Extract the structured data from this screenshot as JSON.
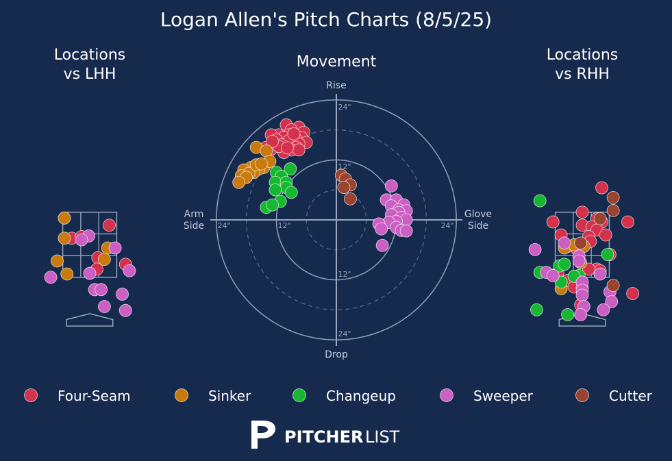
{
  "title": "Logan Allen's Pitch Charts (8/5/25)",
  "brand": {
    "strong": "PITCHER",
    "light": "LIST"
  },
  "colors": {
    "background": "#162a4e",
    "grid": "#9aa6bb",
    "text": "#ffffff",
    "muted": "#c4ccd9"
  },
  "legend": [
    {
      "name": "Four-Seam",
      "color": "#d4314c"
    },
    {
      "name": "Sinker",
      "color": "#c97a0c"
    },
    {
      "name": "Changeup",
      "color": "#17b831"
    },
    {
      "name": "Sweeper",
      "color": "#cc5fc3"
    },
    {
      "name": "Cutter",
      "color": "#9a4330"
    }
  ],
  "chart_data": [
    {
      "type": "scatter",
      "title": "Locations vs LHH",
      "title_lines": [
        "Locations",
        "vs LHH"
      ],
      "x_unit": "ft from plate center (catcher view)",
      "y_unit": "ft above ground",
      "xlim": [
        -1.8,
        1.8
      ],
      "ylim": [
        -0.3,
        4.5
      ],
      "zone": {
        "x": [
          -0.83,
          0.83
        ],
        "y": [
          1.5,
          3.5
        ]
      },
      "series": [
        {
          "name": "Four-Seam",
          "points": [
            [
              0.6,
              3.1
            ],
            [
              -0.55,
              2.7
            ],
            [
              -0.25,
              2.75
            ],
            [
              0.25,
              2.1
            ],
            [
              0.22,
              1.75
            ],
            [
              1.1,
              1.9
            ]
          ]
        },
        {
          "name": "Sinker",
          "points": [
            [
              -0.78,
              3.32
            ],
            [
              -0.78,
              2.7
            ],
            [
              0.55,
              2.4
            ],
            [
              0.45,
              2.05
            ],
            [
              -1.0,
              2.0
            ],
            [
              -0.7,
              1.6
            ]
          ]
        },
        {
          "name": "Sweeper",
          "points": [
            [
              -0.03,
              2.77
            ],
            [
              -0.25,
              2.65
            ],
            [
              0.78,
              2.4
            ],
            [
              1.22,
              1.7
            ],
            [
              0.0,
              1.62
            ],
            [
              -1.2,
              1.5
            ],
            [
              0.15,
              1.12
            ],
            [
              0.35,
              1.12
            ],
            [
              1.0,
              0.98
            ],
            [
              0.45,
              0.6
            ],
            [
              1.1,
              0.48
            ]
          ]
        }
      ]
    },
    {
      "type": "scatter",
      "title": "Movement",
      "axis_labels": {
        "top": "Rise",
        "bottom": "Drop",
        "left": [
          "Arm",
          "Side"
        ],
        "right": [
          "Glove",
          "Side"
        ]
      },
      "unit": "inches",
      "rings": [
        6,
        12,
        18,
        24
      ],
      "ring_labels": [
        "12\"",
        "24\"",
        "12\"",
        "24\"",
        "12\"",
        "24\"",
        "12\"",
        "24\""
      ],
      "series": [
        {
          "name": "Four-Seam",
          "points": [
            [
              -10,
              19
            ],
            [
              -7.5,
              18.5
            ],
            [
              -9,
              18
            ],
            [
              -6.5,
              17.5
            ],
            [
              -9.5,
              17
            ],
            [
              -11.5,
              17
            ],
            [
              -13,
              17
            ],
            [
              -7,
              16.5
            ],
            [
              -10.5,
              16.5
            ],
            [
              -12,
              16
            ],
            [
              -8,
              16
            ],
            [
              -9.5,
              15.8
            ],
            [
              -6,
              15.5
            ],
            [
              -7.5,
              15.2
            ],
            [
              -11,
              15
            ],
            [
              -12.5,
              15
            ],
            [
              -14,
              14.5
            ],
            [
              -8,
              14.5
            ],
            [
              -9,
              14
            ],
            [
              -10.5,
              13.5
            ],
            [
              -7.5,
              14
            ],
            [
              -13,
              14.2
            ],
            [
              -11.5,
              14.7
            ],
            [
              -9.8,
              14.4
            ],
            [
              -8.5,
              17.2
            ],
            [
              -12.8,
              15.7
            ]
          ]
        },
        {
          "name": "Sinker",
          "points": [
            [
              -16,
              14.5
            ],
            [
              -14,
              13.8
            ],
            [
              -14.5,
              10.5
            ],
            [
              -15.5,
              10.2
            ],
            [
              -17,
              10.5
            ],
            [
              -18.5,
              10
            ],
            [
              -16.5,
              9.5
            ],
            [
              -17.5,
              9.3
            ],
            [
              -19,
              8.8
            ],
            [
              -18,
              8.5
            ],
            [
              -19.5,
              7.5
            ],
            [
              -16,
              11
            ],
            [
              -13.3,
              11.7
            ],
            [
              -15,
              11.2
            ]
          ]
        },
        {
          "name": "Changeup",
          "points": [
            [
              -12,
              9.5
            ],
            [
              -9.2,
              10.2
            ],
            [
              -11,
              8.7
            ],
            [
              -12.2,
              7.5
            ],
            [
              -10,
              7.5
            ],
            [
              -10,
              6.5
            ],
            [
              -12.2,
              6
            ],
            [
              -9,
              5.5
            ],
            [
              -11.2,
              3.7
            ],
            [
              -14,
              2.5
            ],
            [
              -12.8,
              3
            ]
          ]
        },
        {
          "name": "Sweeper",
          "points": [
            [
              11,
              6.8
            ],
            [
              10,
              4
            ],
            [
              12,
              4
            ],
            [
              13.5,
              3
            ],
            [
              11,
              2.8
            ],
            [
              12.5,
              2
            ],
            [
              14,
              1.8
            ],
            [
              12.5,
              1.5
            ],
            [
              11,
              1
            ],
            [
              13,
              0.5
            ],
            [
              14,
              0
            ],
            [
              12,
              -0.3
            ],
            [
              10.5,
              -0.5
            ],
            [
              8.5,
              -0.8
            ],
            [
              9,
              -1.8
            ],
            [
              12,
              -1.5
            ],
            [
              13,
              -2.1
            ],
            [
              14,
              -2.2
            ],
            [
              9.2,
              -5.1
            ]
          ]
        },
        {
          "name": "Cutter",
          "points": [
            [
              1,
              8.9
            ],
            [
              1.8,
              8.2
            ],
            [
              2.8,
              7
            ],
            [
              1.5,
              6.5
            ],
            [
              2.8,
              4.2
            ]
          ]
        }
      ]
    },
    {
      "type": "scatter",
      "title": "Locations vs RHH",
      "title_lines": [
        "Locations",
        "vs RHH"
      ],
      "x_unit": "ft from plate center (catcher view)",
      "y_unit": "ft above ground",
      "xlim": [
        -1.8,
        1.8
      ],
      "ylim": [
        -0.3,
        4.5
      ],
      "zone": {
        "x": [
          -0.83,
          0.83
        ],
        "y": [
          1.5,
          3.5
        ]
      },
      "series": [
        {
          "name": "Four-Seam",
          "points": [
            [
              0.6,
              4.25
            ],
            [
              0.0,
              3.5
            ],
            [
              0.45,
              3.3
            ],
            [
              0.6,
              3.2
            ],
            [
              -0.9,
              3.2
            ],
            [
              0.0,
              3.1
            ],
            [
              0.3,
              3.05
            ],
            [
              0.45,
              2.95
            ],
            [
              -0.65,
              2.8
            ],
            [
              0.2,
              2.75
            ],
            [
              0.72,
              2.8
            ],
            [
              0.25,
              2.6
            ],
            [
              -0.45,
              2.45
            ],
            [
              -0.15,
              2.35
            ],
            [
              0.85,
              2.2
            ],
            [
              0.45,
              1.75
            ],
            [
              0.55,
              1.7
            ],
            [
              0.2,
              1.75
            ],
            [
              -0.75,
              1.65
            ],
            [
              -0.45,
              1.4
            ],
            [
              -0.25,
              1.2
            ],
            [
              0.0,
              1.18
            ],
            [
              1.4,
              3.2
            ],
            [
              1.55,
              1.0
            ],
            [
              -0.05,
              0.65
            ]
          ]
        },
        {
          "name": "Sinker",
          "points": [
            [
              -0.55,
              2.4
            ],
            [
              -0.25,
              2.5
            ],
            [
              0.05,
              2.45
            ],
            [
              -0.65,
              1.15
            ],
            [
              -0.05,
              1.95
            ]
          ]
        },
        {
          "name": "Changeup",
          "points": [
            [
              -1.3,
              3.85
            ],
            [
              -1.3,
              1.65
            ],
            [
              -0.7,
              1.85
            ],
            [
              -0.55,
              1.9
            ],
            [
              -0.1,
              1.55
            ],
            [
              -0.25,
              1.53
            ],
            [
              -0.65,
              1.35
            ],
            [
              0.78,
              2.2
            ],
            [
              -1.4,
              0.5
            ],
            [
              -0.45,
              0.35
            ]
          ]
        },
        {
          "name": "Sweeper",
          "points": [
            [
              -1.45,
              2.35
            ],
            [
              -0.55,
              2.55
            ],
            [
              -0.1,
              2.15
            ],
            [
              -0.1,
              2.0
            ],
            [
              -1.1,
              1.65
            ],
            [
              -0.9,
              1.55
            ],
            [
              0.55,
              1.6
            ],
            [
              0.0,
              1.35
            ],
            [
              0.0,
              1.1
            ],
            [
              0.85,
              1.05
            ],
            [
              0.0,
              0.95
            ],
            [
              0.9,
              0.75
            ],
            [
              0.05,
              0.6
            ],
            [
              0.65,
              0.5
            ],
            [
              -0.05,
              0.35
            ]
          ]
        },
        {
          "name": "Cutter",
          "points": [
            [
              0.95,
              3.95
            ],
            [
              0.95,
              3.55
            ],
            [
              0.55,
              3.3
            ],
            [
              -0.05,
              2.55
            ],
            [
              0.95,
              1.25
            ]
          ]
        }
      ]
    }
  ]
}
